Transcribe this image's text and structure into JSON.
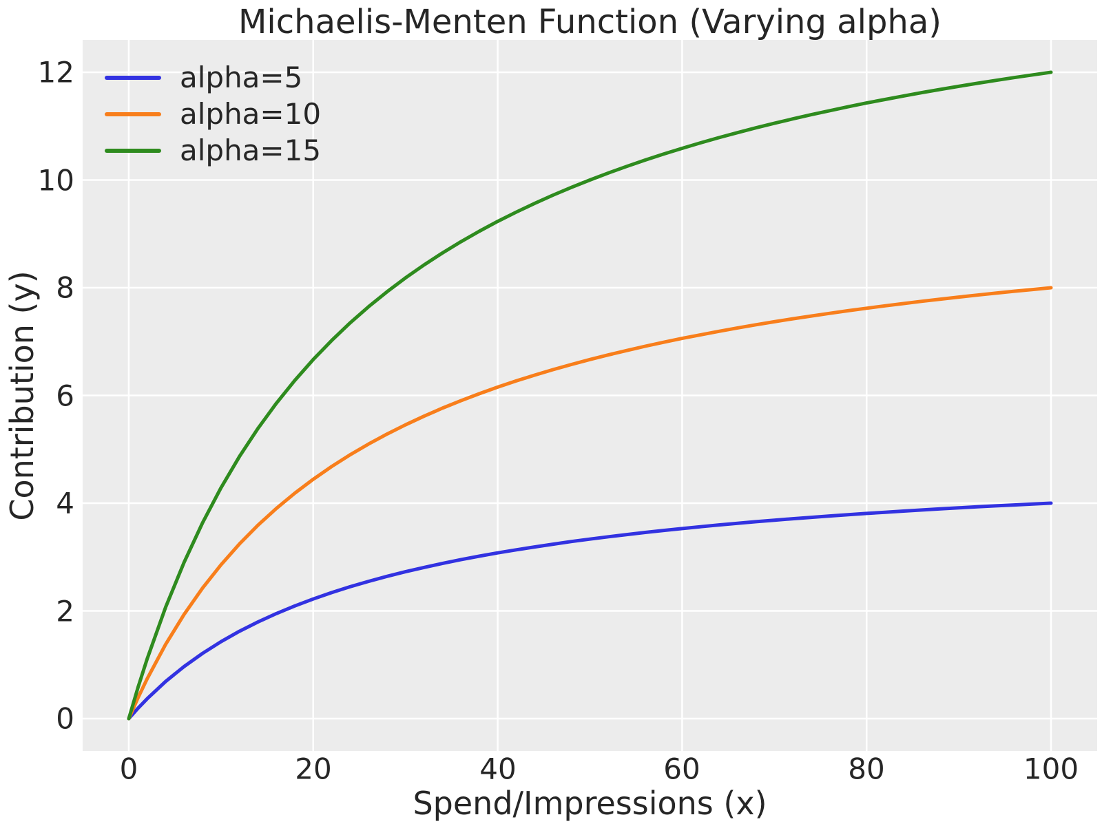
{
  "chart_data": {
    "type": "line",
    "title": "Michaelis-Menten Function (Varying alpha)",
    "xlabel": "Spend/Impressions (x)",
    "ylabel": "Contribution (y)",
    "xlim": [
      -5,
      105
    ],
    "ylim": [
      -0.6,
      12.6
    ],
    "xticks": [
      0,
      20,
      40,
      60,
      80,
      100
    ],
    "yticks": [
      0,
      2,
      4,
      6,
      8,
      10,
      12
    ],
    "xtick_labels": [
      "0",
      "20",
      "40",
      "60",
      "80",
      "100"
    ],
    "ytick_labels": [
      "0",
      "2",
      "4",
      "6",
      "8",
      "10",
      "12"
    ],
    "grid": true,
    "legend_position": "upper-left",
    "plot_background_color": "#ececec",
    "gridline_color": "#ffffff",
    "text_color": "#262626",
    "x": [
      0,
      1,
      2,
      4,
      6,
      8,
      10,
      12,
      14,
      16,
      18,
      20,
      22,
      24,
      26,
      28,
      30,
      32,
      34,
      36,
      38,
      40,
      42,
      44,
      46,
      48,
      50,
      52,
      54,
      56,
      58,
      60,
      62,
      64,
      66,
      68,
      70,
      72,
      74,
      76,
      78,
      80,
      82,
      84,
      86,
      88,
      90,
      92,
      94,
      96,
      98,
      100
    ],
    "series": [
      {
        "name": "alpha=5",
        "color": "#3232e1",
        "values": [
          0,
          0.192,
          0.37,
          0.69,
          0.968,
          1.212,
          1.429,
          1.622,
          1.795,
          1.951,
          2.093,
          2.222,
          2.34,
          2.449,
          2.549,
          2.642,
          2.727,
          2.807,
          2.881,
          2.951,
          3.016,
          3.077,
          3.134,
          3.188,
          3.239,
          3.288,
          3.333,
          3.377,
          3.418,
          3.457,
          3.494,
          3.529,
          3.563,
          3.596,
          3.626,
          3.656,
          3.684,
          3.711,
          3.737,
          3.762,
          3.786,
          3.81,
          3.832,
          3.853,
          3.874,
          3.894,
          3.913,
          3.932,
          3.95,
          3.967,
          3.984,
          4
        ]
      },
      {
        "name": "alpha=10",
        "color": "#f87e1b",
        "values": [
          0,
          0.385,
          0.741,
          1.379,
          1.935,
          2.424,
          2.857,
          3.243,
          3.59,
          3.902,
          4.186,
          4.444,
          4.681,
          4.898,
          5.098,
          5.283,
          5.455,
          5.614,
          5.763,
          5.902,
          6.032,
          6.154,
          6.269,
          6.377,
          6.479,
          6.575,
          6.667,
          6.753,
          6.835,
          6.914,
          6.988,
          7.059,
          7.126,
          7.191,
          7.253,
          7.312,
          7.368,
          7.423,
          7.475,
          7.525,
          7.573,
          7.619,
          7.664,
          7.706,
          7.748,
          7.788,
          7.826,
          7.863,
          7.899,
          7.934,
          7.967,
          8
        ]
      },
      {
        "name": "alpha=15",
        "color": "#2e8b1e",
        "values": [
          0,
          0.577,
          1.111,
          2.069,
          2.903,
          3.636,
          4.286,
          4.865,
          5.385,
          5.854,
          6.279,
          6.667,
          7.021,
          7.347,
          7.647,
          7.925,
          8.182,
          8.421,
          8.644,
          8.852,
          9.048,
          9.231,
          9.403,
          9.565,
          9.718,
          9.863,
          10,
          10.13,
          10.253,
          10.37,
          10.482,
          10.588,
          10.69,
          10.787,
          10.879,
          10.968,
          11.053,
          11.134,
          11.212,
          11.287,
          11.359,
          11.429,
          11.495,
          11.56,
          11.622,
          11.681,
          11.739,
          11.795,
          11.849,
          11.901,
          11.951,
          12
        ]
      }
    ]
  }
}
